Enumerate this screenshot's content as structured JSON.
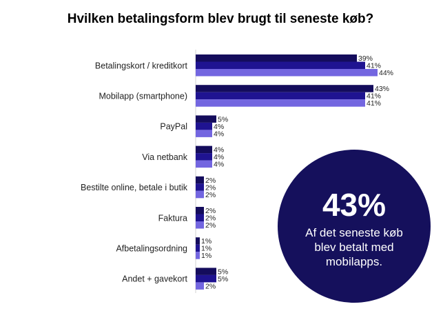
{
  "chart_data": {
    "type": "bar",
    "orientation": "horizontal",
    "title": "Hvilken betalingsform blev brugt til seneste køb?",
    "categories": [
      "Betalingskort / kreditkort",
      "Mobilapp (smartphone)",
      "PayPal",
      "Via netbank",
      "Bestilte online, betale i butik",
      "Faktura",
      "Afbetalingsordning",
      "Andet + gavekort"
    ],
    "series": [
      {
        "name": "series-1",
        "color": "#140c5c",
        "values": [
          39,
          43,
          5,
          4,
          2,
          2,
          1,
          5
        ]
      },
      {
        "name": "series-2",
        "color": "#1f1391",
        "values": [
          41,
          41,
          4,
          4,
          2,
          2,
          1,
          5
        ]
      },
      {
        "name": "series-3",
        "color": "#7366e0",
        "values": [
          44,
          41,
          4,
          4,
          2,
          2,
          1,
          2
        ]
      }
    ],
    "value_suffix": "%",
    "xlim": [
      0,
      50
    ]
  },
  "callout": {
    "value": "43%",
    "text": "Af det seneste køb blev betalt med mobilapps."
  }
}
